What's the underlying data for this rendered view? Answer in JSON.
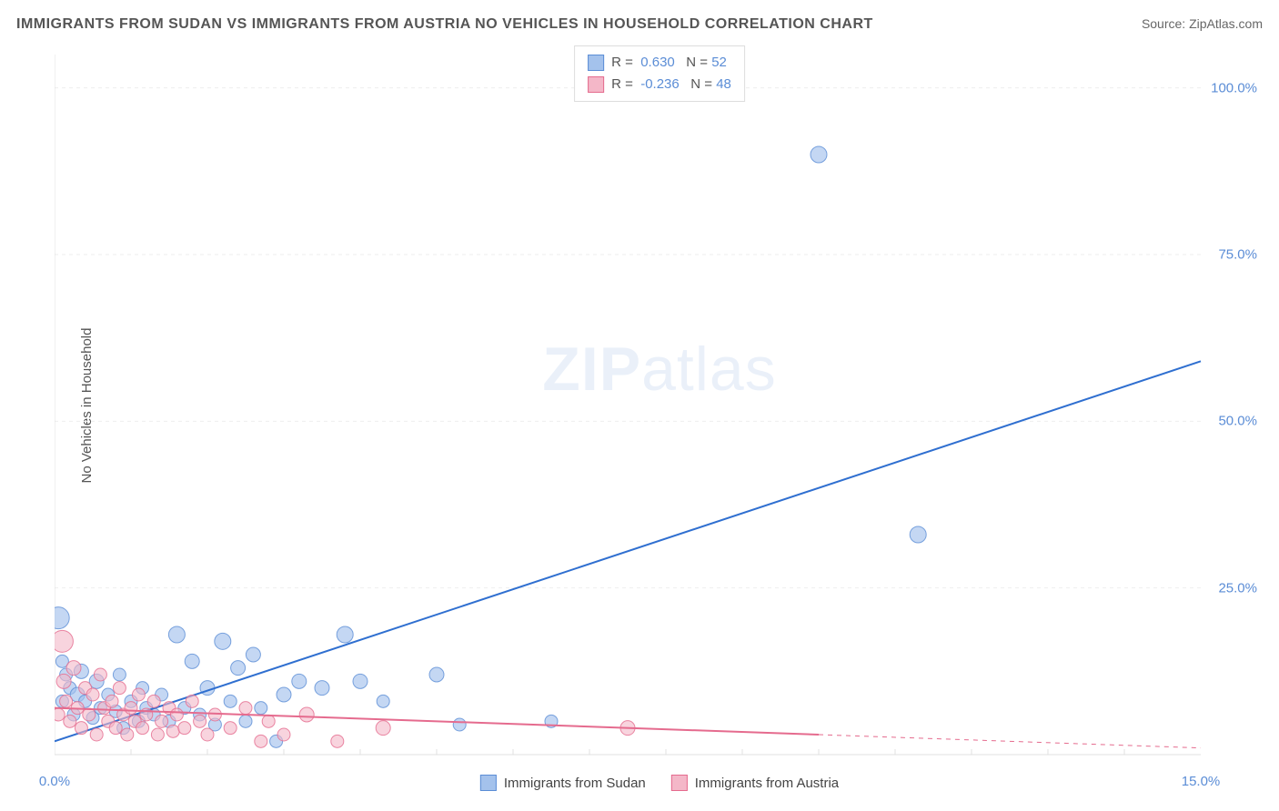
{
  "title": "IMMIGRANTS FROM SUDAN VS IMMIGRANTS FROM AUSTRIA NO VEHICLES IN HOUSEHOLD CORRELATION CHART",
  "source_label": "Source: ",
  "source_name": "ZipAtlas.com",
  "y_axis_label": "No Vehicles in Household",
  "watermark_a": "ZIP",
  "watermark_b": "atlas",
  "chart": {
    "type": "scatter",
    "xlim": [
      0,
      15
    ],
    "ylim": [
      0,
      105
    ],
    "y_ticks": [
      25.0,
      50.0,
      75.0,
      100.0
    ],
    "y_tick_suffix": "%",
    "x_ticks_major": [
      0.0,
      15.0
    ],
    "x_tick_suffix": "%",
    "x_minor_step": 1.0,
    "background_color": "#ffffff",
    "grid_color": "#eeeeee",
    "grid_dash": "4,4",
    "axis_color": "#e0e0e0"
  },
  "series": [
    {
      "name": "Immigrants from Sudan",
      "fill": "#a4c2ec",
      "stroke": "#5b8dd6",
      "opacity": 0.65,
      "marker_r": 8,
      "reg_line": {
        "x1": 0.0,
        "y1": 2.0,
        "x2": 15.0,
        "y2": 59.0,
        "color": "#2f6fd0",
        "width": 2
      },
      "R": "0.630",
      "N": "52",
      "points": [
        [
          0.05,
          20.5,
          12
        ],
        [
          0.1,
          14,
          7
        ],
        [
          0.1,
          8,
          7
        ],
        [
          0.15,
          12,
          7
        ],
        [
          0.2,
          10,
          7
        ],
        [
          0.25,
          6,
          7
        ],
        [
          0.3,
          9,
          8
        ],
        [
          0.35,
          12.5,
          8
        ],
        [
          0.4,
          8,
          7
        ],
        [
          0.5,
          5.5,
          7
        ],
        [
          0.55,
          11,
          8
        ],
        [
          0.6,
          7,
          7
        ],
        [
          0.7,
          9,
          7
        ],
        [
          0.8,
          6.5,
          7
        ],
        [
          0.85,
          12,
          7
        ],
        [
          0.9,
          4,
          7
        ],
        [
          1.0,
          8,
          7
        ],
        [
          1.1,
          5,
          7
        ],
        [
          1.15,
          10,
          7
        ],
        [
          1.2,
          7,
          7
        ],
        [
          1.3,
          6,
          7
        ],
        [
          1.4,
          9,
          7
        ],
        [
          1.5,
          5,
          7
        ],
        [
          1.6,
          18,
          9
        ],
        [
          1.7,
          7,
          7
        ],
        [
          1.8,
          14,
          8
        ],
        [
          1.9,
          6,
          7
        ],
        [
          2.0,
          10,
          8
        ],
        [
          2.1,
          4.5,
          7
        ],
        [
          2.2,
          17,
          9
        ],
        [
          2.3,
          8,
          7
        ],
        [
          2.4,
          13,
          8
        ],
        [
          2.5,
          5,
          7
        ],
        [
          2.6,
          15,
          8
        ],
        [
          2.7,
          7,
          7
        ],
        [
          2.9,
          2,
          7
        ],
        [
          3.0,
          9,
          8
        ],
        [
          3.2,
          11,
          8
        ],
        [
          3.5,
          10,
          8
        ],
        [
          3.8,
          18,
          9
        ],
        [
          4.0,
          11,
          8
        ],
        [
          4.3,
          8,
          7
        ],
        [
          5.0,
          12,
          8
        ],
        [
          5.3,
          4.5,
          7
        ],
        [
          6.5,
          5,
          7
        ],
        [
          10.0,
          90,
          9
        ],
        [
          11.3,
          33,
          9
        ]
      ]
    },
    {
      "name": "Immigrants from Austria",
      "fill": "#f4b7c8",
      "stroke": "#e56b8e",
      "opacity": 0.6,
      "marker_r": 8,
      "reg_line": {
        "x1": 0.0,
        "y1": 7.0,
        "x2": 10.0,
        "y2": 3.0,
        "color": "#e56b8e",
        "width": 2
      },
      "reg_line_ext": {
        "x1": 10.0,
        "y1": 3.0,
        "x2": 15.0,
        "y2": 1.0,
        "color": "#e56b8e",
        "width": 1,
        "dash": "5,5"
      },
      "R": "-0.236",
      "N": "48",
      "points": [
        [
          0.05,
          6,
          7
        ],
        [
          0.1,
          17,
          12
        ],
        [
          0.12,
          11,
          8
        ],
        [
          0.15,
          8,
          7
        ],
        [
          0.2,
          5,
          7
        ],
        [
          0.25,
          13,
          8
        ],
        [
          0.3,
          7,
          7
        ],
        [
          0.35,
          4,
          7
        ],
        [
          0.4,
          10,
          7
        ],
        [
          0.45,
          6,
          7
        ],
        [
          0.5,
          9,
          7
        ],
        [
          0.55,
          3,
          7
        ],
        [
          0.6,
          12,
          7
        ],
        [
          0.65,
          7,
          7
        ],
        [
          0.7,
          5,
          7
        ],
        [
          0.75,
          8,
          7
        ],
        [
          0.8,
          4,
          7
        ],
        [
          0.85,
          10,
          7
        ],
        [
          0.9,
          6,
          7
        ],
        [
          0.95,
          3,
          7
        ],
        [
          1.0,
          7,
          7
        ],
        [
          1.05,
          5,
          7
        ],
        [
          1.1,
          9,
          7
        ],
        [
          1.15,
          4,
          7
        ],
        [
          1.2,
          6,
          7
        ],
        [
          1.3,
          8,
          7
        ],
        [
          1.35,
          3,
          7
        ],
        [
          1.4,
          5,
          7
        ],
        [
          1.5,
          7,
          7
        ],
        [
          1.55,
          3.5,
          7
        ],
        [
          1.6,
          6,
          7
        ],
        [
          1.7,
          4,
          7
        ],
        [
          1.8,
          8,
          7
        ],
        [
          1.9,
          5,
          7
        ],
        [
          2.0,
          3,
          7
        ],
        [
          2.1,
          6,
          7
        ],
        [
          2.3,
          4,
          7
        ],
        [
          2.5,
          7,
          7
        ],
        [
          2.7,
          2,
          7
        ],
        [
          2.8,
          5,
          7
        ],
        [
          3.0,
          3,
          7
        ],
        [
          3.3,
          6,
          8
        ],
        [
          3.7,
          2,
          7
        ],
        [
          4.3,
          4,
          8
        ],
        [
          7.5,
          4,
          8
        ]
      ]
    }
  ],
  "legend_top": {
    "r_label": "R =",
    "n_label": "N ="
  },
  "legend_bottom_series": [
    "Immigrants from Sudan",
    "Immigrants from Austria"
  ]
}
